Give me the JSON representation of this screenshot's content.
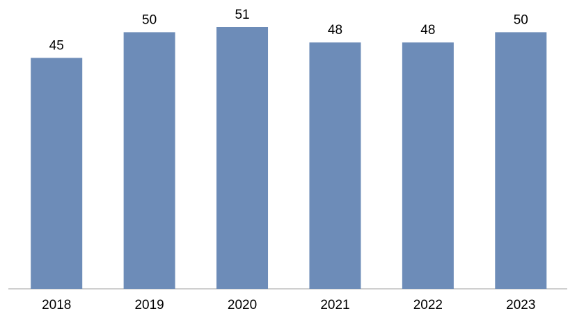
{
  "chart_data": {
    "type": "bar",
    "categories": [
      "2018",
      "2019",
      "2020",
      "2021",
      "2022",
      "2023"
    ],
    "values": [
      45,
      50,
      51,
      48,
      48,
      50
    ],
    "color": "#6d8cb8"
  }
}
